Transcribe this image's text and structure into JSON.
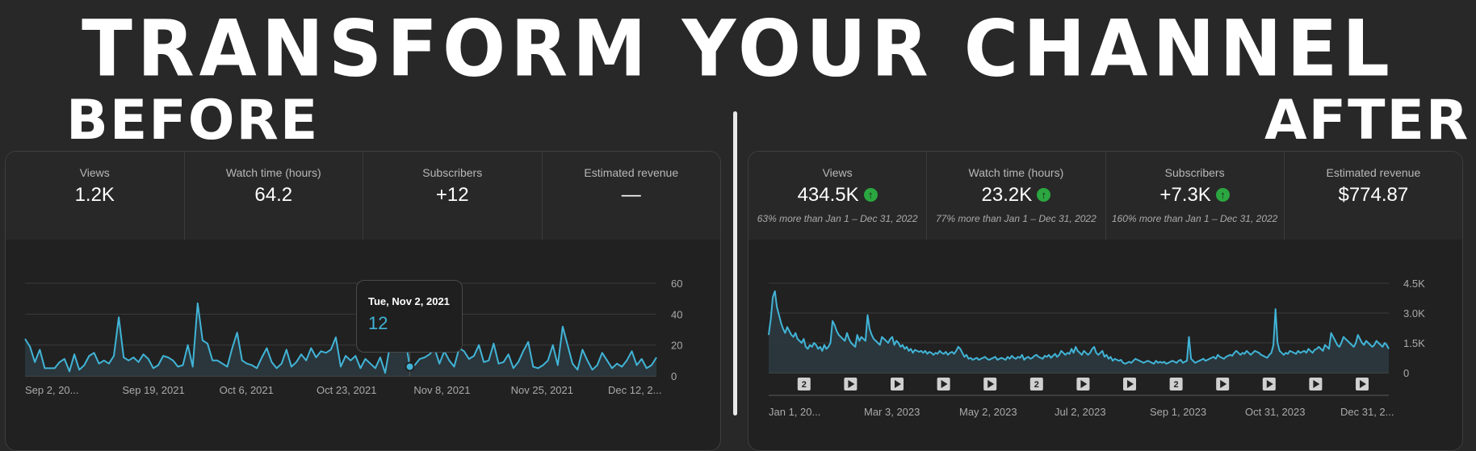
{
  "banner": {
    "title": "TRANSFORM YOUR CHANNEL"
  },
  "before": {
    "heading": "BEFORE",
    "metrics": [
      {
        "label": "Views",
        "value": "1.2K"
      },
      {
        "label": "Watch time (hours)",
        "value": "64.2"
      },
      {
        "label": "Subscribers",
        "value": "+12"
      },
      {
        "label": "Estimated revenue",
        "value": "—"
      }
    ],
    "tooltip": {
      "date": "Tue, Nov 2, 2021",
      "value": "12"
    },
    "chart_data": {
      "type": "area",
      "ylim": [
        0,
        60
      ],
      "y_ticks": [
        "0",
        "20",
        "40",
        "60"
      ],
      "x_labels": [
        "Sep 2, 20...",
        "Sep 19, 2021",
        "Oct 6, 2021",
        "Oct 23, 2021",
        "Nov 8, 2021",
        "Nov 25, 2021",
        "Dec 12, 2..."
      ],
      "grid": true,
      "line_color": "#41b4d7",
      "values": [
        24,
        19,
        9,
        17,
        5,
        5,
        5,
        9,
        11,
        3,
        14,
        4,
        7,
        13,
        15,
        8,
        10,
        8,
        13,
        38,
        12,
        10,
        12,
        9,
        14,
        11,
        5,
        7,
        13,
        12,
        10,
        6,
        7,
        20,
        6,
        47,
        23,
        21,
        10,
        10,
        8,
        6,
        18,
        28,
        10,
        8,
        7,
        5,
        12,
        18,
        9,
        5,
        8,
        17,
        6,
        9,
        14,
        10,
        18,
        12,
        16,
        15,
        17,
        25,
        6,
        13,
        10,
        13,
        5,
        11,
        8,
        5,
        12,
        2,
        20,
        20,
        20,
        26,
        6,
        7,
        11,
        12,
        14,
        18,
        8,
        16,
        10,
        6,
        18,
        16,
        11,
        13,
        20,
        9,
        10,
        21,
        8,
        9,
        14,
        5,
        9,
        16,
        22,
        6,
        5,
        7,
        10,
        20,
        7,
        32,
        20,
        8,
        4,
        17,
        10,
        4,
        7,
        15,
        10,
        5,
        8,
        6,
        10,
        16,
        7,
        11,
        5,
        7,
        12
      ]
    }
  },
  "after": {
    "heading": "AFTER",
    "metrics": [
      {
        "label": "Views",
        "value": "434.5K",
        "note": "63% more than Jan 1 – Dec 31, 2022"
      },
      {
        "label": "Watch time (hours)",
        "value": "23.2K",
        "note": "77% more than Jan 1 – Dec 31, 2022"
      },
      {
        "label": "Subscribers",
        "value": "+7.3K",
        "note": "160% more than Jan 1 – Dec 31, 2022"
      },
      {
        "label": "Estimated revenue",
        "value": "$774.87"
      }
    ],
    "arrow_icon": "up-arrow-icon",
    "arrow_color": "#2ba640",
    "chart_data": {
      "type": "area",
      "ylim": [
        0,
        4500
      ],
      "y_ticks": [
        "0",
        "1.5K",
        "3.0K",
        "4.5K"
      ],
      "x_labels": [
        "Jan 1, 20...",
        "Mar 3, 2023",
        "May 2, 2023",
        "Jul 2, 2023",
        "Sep 1, 2023",
        "Oct 31, 2023",
        "Dec 31, 2..."
      ],
      "grid": true,
      "line_color": "#41b4d7",
      "markers": [
        "2",
        "play",
        "play",
        "play",
        "play",
        "2",
        "play",
        "play",
        "2",
        "play",
        "play",
        "play",
        "play"
      ],
      "values": [
        1900,
        2700,
        3800,
        4100,
        3300,
        2900,
        2500,
        2200,
        2000,
        2300,
        2100,
        1900,
        1800,
        2000,
        1700,
        1600,
        1500,
        1700,
        1300,
        1200,
        1400,
        1300,
        1500,
        1400,
        1200,
        1300,
        1100,
        1400,
        1200,
        1300,
        1500,
        2600,
        2400,
        2100,
        1900,
        1800,
        1700,
        1600,
        2000,
        1700,
        1500,
        1400,
        1300,
        1900,
        1600,
        1800,
        1700,
        1600,
        2900,
        2200,
        1900,
        1700,
        1600,
        1500,
        1400,
        1800,
        1700,
        1600,
        1500,
        1700,
        1800,
        1400,
        1600,
        1500,
        1300,
        1400,
        1200,
        1300,
        1100,
        1200,
        1000,
        1150,
        1100,
        1050,
        1100,
        1000,
        1100,
        950,
        1050,
        1000,
        900,
        1000,
        950,
        1100,
        1000,
        950,
        1050,
        900,
        1000,
        1050,
        950,
        1100,
        1300,
        1200,
        1000,
        800,
        900,
        700,
        750,
        650,
        700,
        750,
        650,
        700,
        750,
        800,
        700,
        650,
        700,
        750,
        800,
        650,
        700,
        750,
        700,
        650,
        800,
        700,
        850,
        750,
        700,
        800,
        750,
        900,
        650,
        750,
        800,
        700,
        750,
        850,
        900,
        800,
        750,
        700,
        850,
        800,
        900,
        750,
        850,
        950,
        800,
        900,
        1100,
        1000,
        900,
        1000,
        950,
        1200,
        1000,
        1300,
        1100,
        1000,
        900,
        1100,
        1000,
        900,
        1000,
        1200,
        1300,
        1000,
        900,
        1000,
        1100,
        800,
        900,
        700,
        800,
        600,
        700,
        650,
        600,
        650,
        500,
        450,
        500,
        550,
        500,
        600,
        700,
        650,
        600,
        550,
        500,
        550,
        600,
        550,
        500,
        450,
        600,
        500,
        550,
        500,
        550,
        450,
        500,
        550,
        600,
        550,
        500,
        600,
        650,
        500,
        550,
        600,
        1800,
        700,
        600,
        500,
        550,
        600,
        650,
        700,
        600,
        650,
        700,
        750,
        800,
        700,
        900,
        800,
        750,
        700,
        800,
        850,
        900,
        850,
        1000,
        1100,
        1000,
        900,
        1000,
        950,
        1100,
        1000,
        900,
        1000,
        1100,
        1050,
        1000,
        900,
        850,
        800,
        750,
        900,
        1000,
        1400,
        3200,
        1500,
        1100,
        1000,
        900,
        1000,
        950,
        1100,
        1050,
        1000,
        950,
        1100,
        1000,
        1050,
        1100,
        1000,
        1200,
        1100,
        1000,
        1150,
        1200,
        1300,
        1200,
        1100,
        1400,
        1300,
        1200,
        2000,
        1800,
        1600,
        1400,
        1300,
        1500,
        1800,
        1700,
        1600,
        1500,
        1400,
        1300,
        1500,
        1900,
        1700,
        1500,
        1400,
        1600,
        1500,
        1400,
        1300,
        1400,
        1600,
        1500,
        1400,
        1300,
        1500,
        1400,
        1200
      ]
    }
  }
}
